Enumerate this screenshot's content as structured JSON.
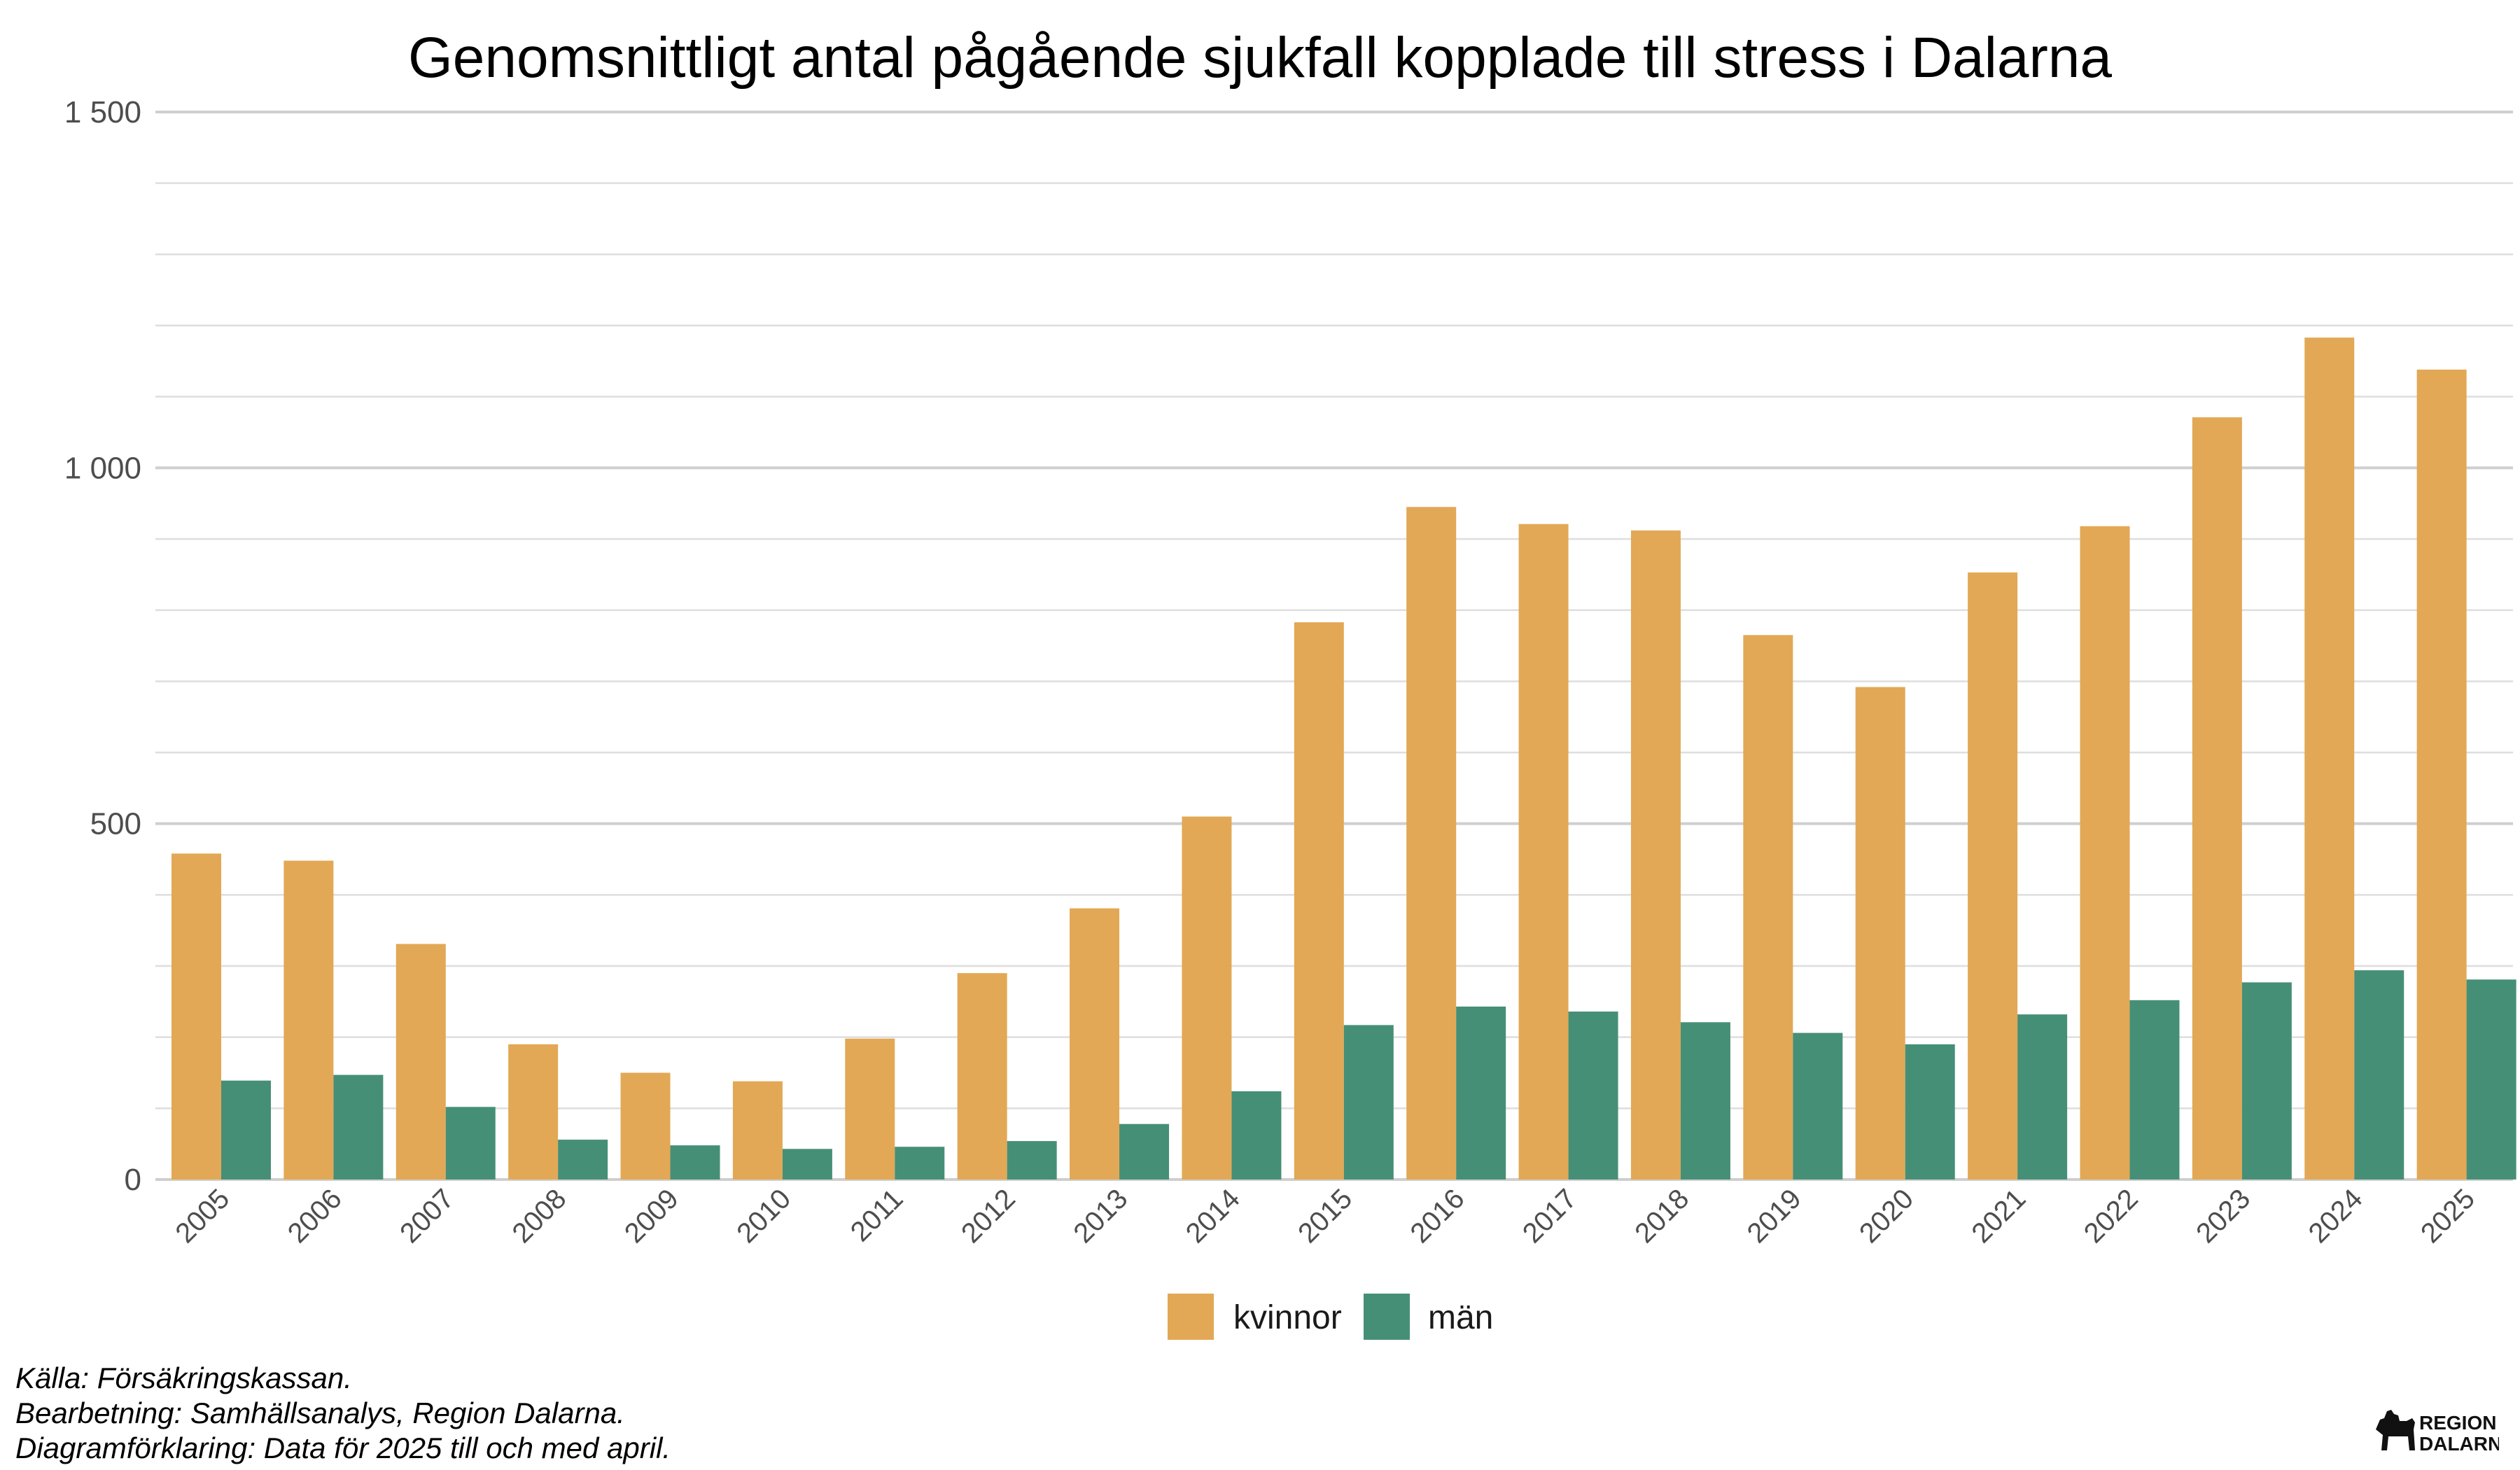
{
  "chart_data": {
    "type": "bar",
    "title": "Genomsnittligt antal pågående sjukfall kopplade till stress i Dalarna",
    "xlabel": "",
    "ylabel": "",
    "ylim": [
      0,
      1500
    ],
    "yticks": [
      {
        "value": 0,
        "label": "0"
      },
      {
        "value": 500,
        "label": "500"
      },
      {
        "value": 1000,
        "label": "1 000"
      },
      {
        "value": 1500,
        "label": "1 500"
      }
    ],
    "grid": true,
    "legend_position": "bottom",
    "categories": [
      "2005",
      "2006",
      "2007",
      "2008",
      "2009",
      "2010",
      "2011",
      "2012",
      "2013",
      "2014",
      "2015",
      "2016",
      "2017",
      "2018",
      "2019",
      "2020",
      "2021",
      "2022",
      "2023",
      "2024",
      "2025"
    ],
    "series": [
      {
        "name": "kvinnor",
        "color": "#E2A855",
        "values": [
          458,
          448,
          331,
          190,
          150,
          138,
          198,
          290,
          381,
          510,
          783,
          945,
          921,
          912,
          765,
          692,
          853,
          918,
          1071,
          1183,
          1138
        ]
      },
      {
        "name": "män",
        "color": "#468F77",
        "values": [
          139,
          147,
          102,
          56,
          48,
          43,
          46,
          54,
          78,
          124,
          217,
          243,
          236,
          221,
          206,
          190,
          232,
          252,
          277,
          294,
          281
        ]
      }
    ]
  },
  "footnotes": {
    "source": "Källa: Försäkringskassan.",
    "processing": "Bearbetning: Samhällsanalys, Region Dalarna.",
    "explanation": "Diagramförklaring: Data för 2025 till och med april."
  },
  "logo": {
    "line1": "REGION",
    "line2": "DALARNA"
  }
}
